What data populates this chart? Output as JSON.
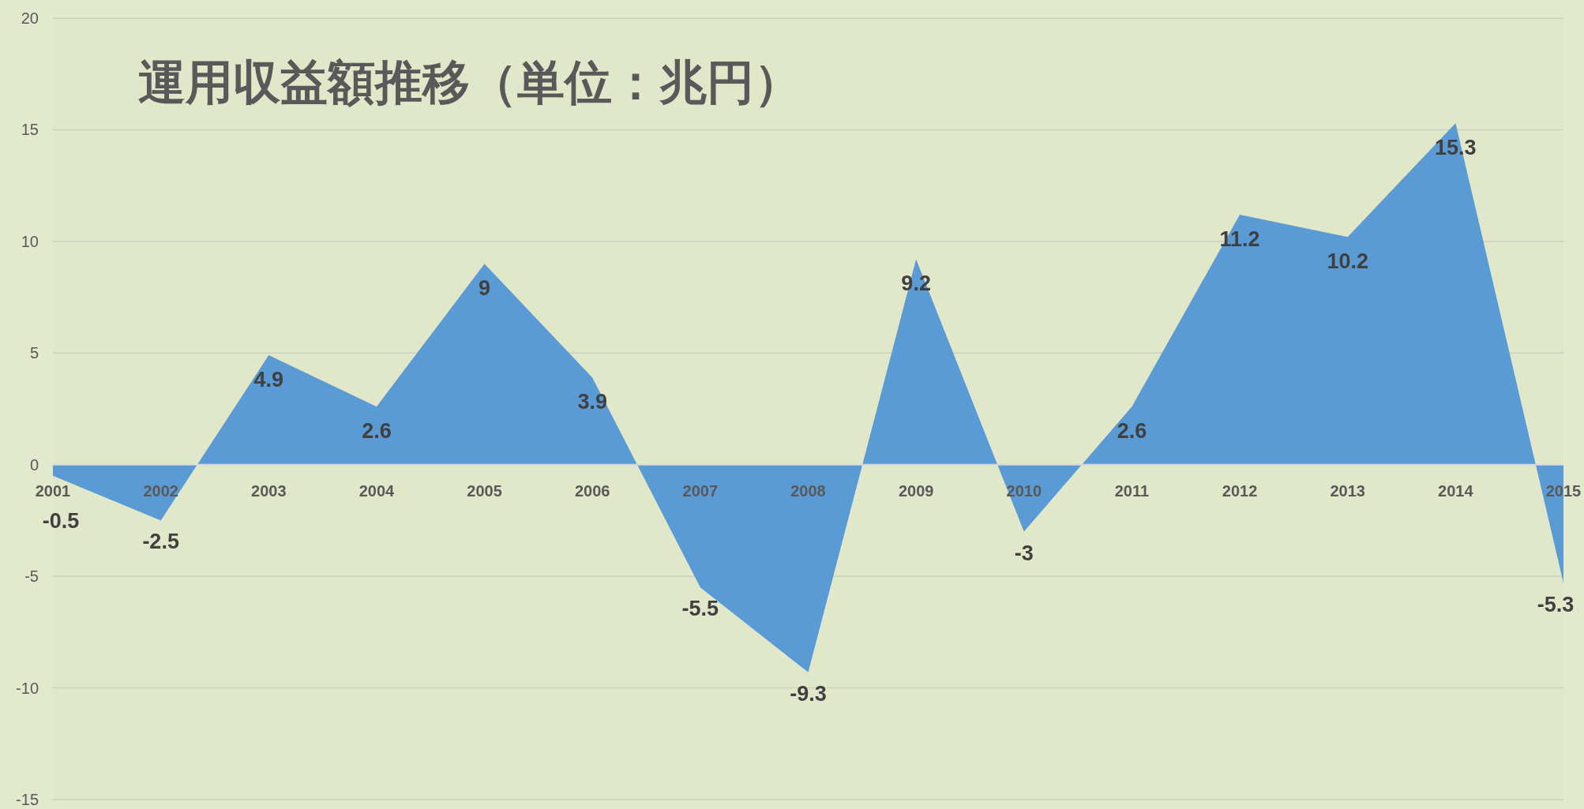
{
  "chart_data": {
    "type": "area",
    "title": "運用収益額推移（単位：兆円）",
    "categories": [
      "2001",
      "2002",
      "2003",
      "2004",
      "2005",
      "2006",
      "2007",
      "2008",
      "2009",
      "2010",
      "2011",
      "2012",
      "2013",
      "2014",
      "2015"
    ],
    "values": [
      -0.5,
      -2.5,
      4.9,
      2.6,
      9,
      3.9,
      -5.5,
      -9.3,
      9.2,
      -3,
      2.6,
      11.2,
      10.2,
      15.3,
      -5.3
    ],
    "color": "#5b9bd5",
    "ylim": [
      -15,
      20
    ],
    "yticks": [
      -15,
      -10,
      -5,
      0,
      5,
      10,
      15,
      20
    ],
    "grid": "y",
    "data_labels": true
  }
}
